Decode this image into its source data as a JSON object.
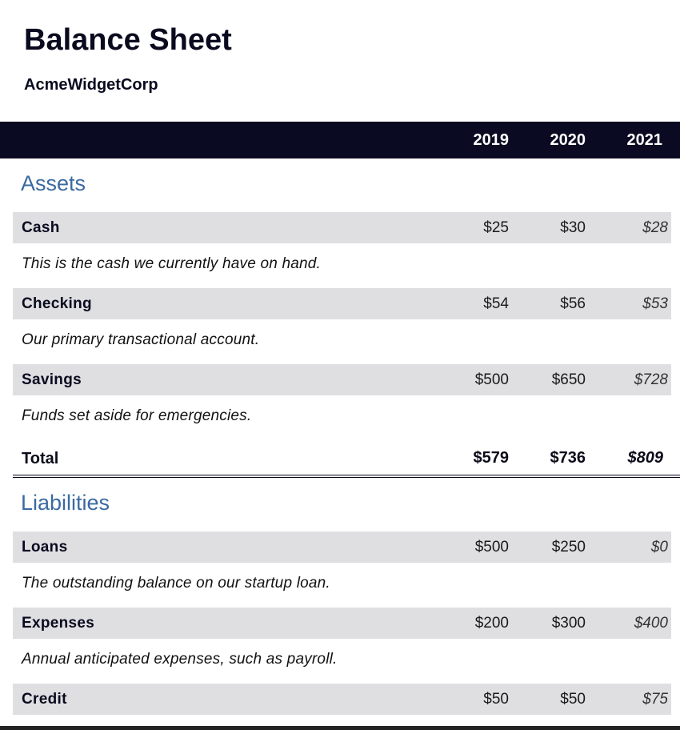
{
  "document": {
    "title": "Balance Sheet",
    "company": "AcmeWidgetCorp",
    "years": [
      "2019",
      "2020",
      "2021"
    ]
  },
  "assets": {
    "heading": "Assets",
    "items": [
      {
        "label": "Cash",
        "values": [
          "$25",
          "$30",
          "$28"
        ],
        "description": "This is the cash we currently have on hand."
      },
      {
        "label": "Checking",
        "values": [
          "$54",
          "$56",
          "$53"
        ],
        "description": "Our primary transactional account."
      },
      {
        "label": "Savings",
        "values": [
          "$500",
          "$650",
          "$728"
        ],
        "description": "Funds set aside for emergencies."
      }
    ],
    "total": {
      "label": "Total",
      "values": [
        "$579",
        "$736",
        "$809"
      ]
    }
  },
  "liabilities": {
    "heading": "Liabilities",
    "items": [
      {
        "label": "Loans",
        "values": [
          "$500",
          "$250",
          "$0"
        ],
        "description": "The outstanding balance on our startup loan."
      },
      {
        "label": "Expenses",
        "values": [
          "$200",
          "$300",
          "$400"
        ],
        "description": "Annual anticipated expenses, such as payroll."
      },
      {
        "label": "Credit",
        "values": [
          "$50",
          "$50",
          "$75"
        ]
      }
    ]
  }
}
